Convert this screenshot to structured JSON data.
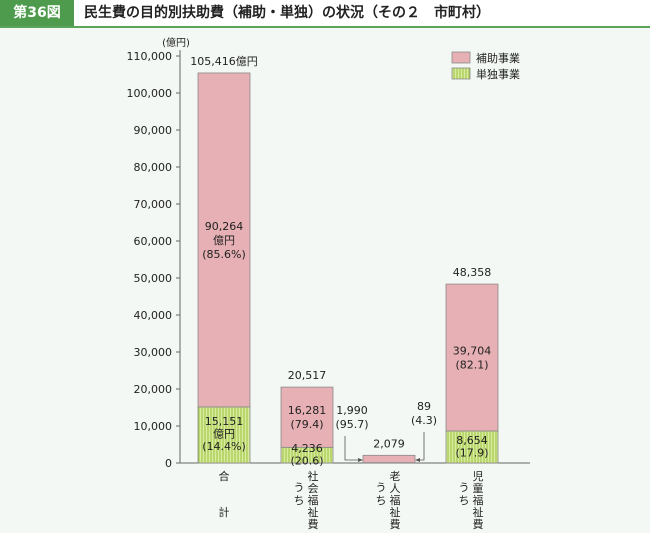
{
  "figure": {
    "label": "第36図",
    "title": "民生費の目的別扶助費（補助・単独）の状況（その２　市町村）"
  },
  "chart_data": {
    "type": "bar",
    "stacked": true,
    "unit": "(億円)",
    "ylim": [
      0,
      110000
    ],
    "yticks": [
      "0",
      "10,000",
      "20,000",
      "30,000",
      "40,000",
      "50,000",
      "60,000",
      "70,000",
      "80,000",
      "90,000",
      "100,000",
      "110,000"
    ],
    "legend": {
      "position": "top-right"
    },
    "series": [
      {
        "name": "単独事業",
        "color": "#d8ec9e",
        "values": [
          15151,
          4236,
          89,
          8654
        ]
      },
      {
        "name": "補助事業",
        "color": "#e6b0b4",
        "values": [
          90264,
          16281,
          1990,
          39704
        ]
      }
    ],
    "categories": [
      {
        "label_lines": [
          "合",
          "",
          "",
          "計"
        ],
        "prefix_lines": []
      },
      {
        "label_lines": [
          "社",
          "会",
          "福",
          "祉",
          "費"
        ],
        "prefix_lines": [
          "う",
          "ち"
        ]
      },
      {
        "label_lines": [
          "老",
          "人",
          "福",
          "祉",
          "費"
        ],
        "prefix_lines": [
          "う",
          "ち"
        ]
      },
      {
        "label_lines": [
          "児",
          "童",
          "福",
          "祉",
          "費"
        ],
        "prefix_lines": [
          "う",
          "ち"
        ]
      }
    ],
    "totals": [
      "105,416億円",
      "20,517",
      "2,079",
      "48,358"
    ],
    "inner_labels": [
      {
        "top": [
          "90,264",
          "億円",
          "(85.6%)"
        ],
        "bottom": [
          "15,151",
          "億円",
          "(14.4%)"
        ]
      },
      {
        "top": [
          "16,281",
          "(79.4)"
        ],
        "bottom": [
          "4,236",
          "(20.6)"
        ]
      },
      {
        "top": [],
        "bottom": []
      },
      {
        "top": [
          "39,704",
          "(82.1)"
        ],
        "bottom": [
          "8,654",
          "(17.9)"
        ]
      }
    ],
    "callouts": [
      {
        "category": 2,
        "lines": [
          "1,990",
          "(95.7)"
        ],
        "side": "left"
      },
      {
        "category": 2,
        "lines": [
          "89",
          "(4.3)"
        ],
        "side": "right"
      }
    ]
  }
}
